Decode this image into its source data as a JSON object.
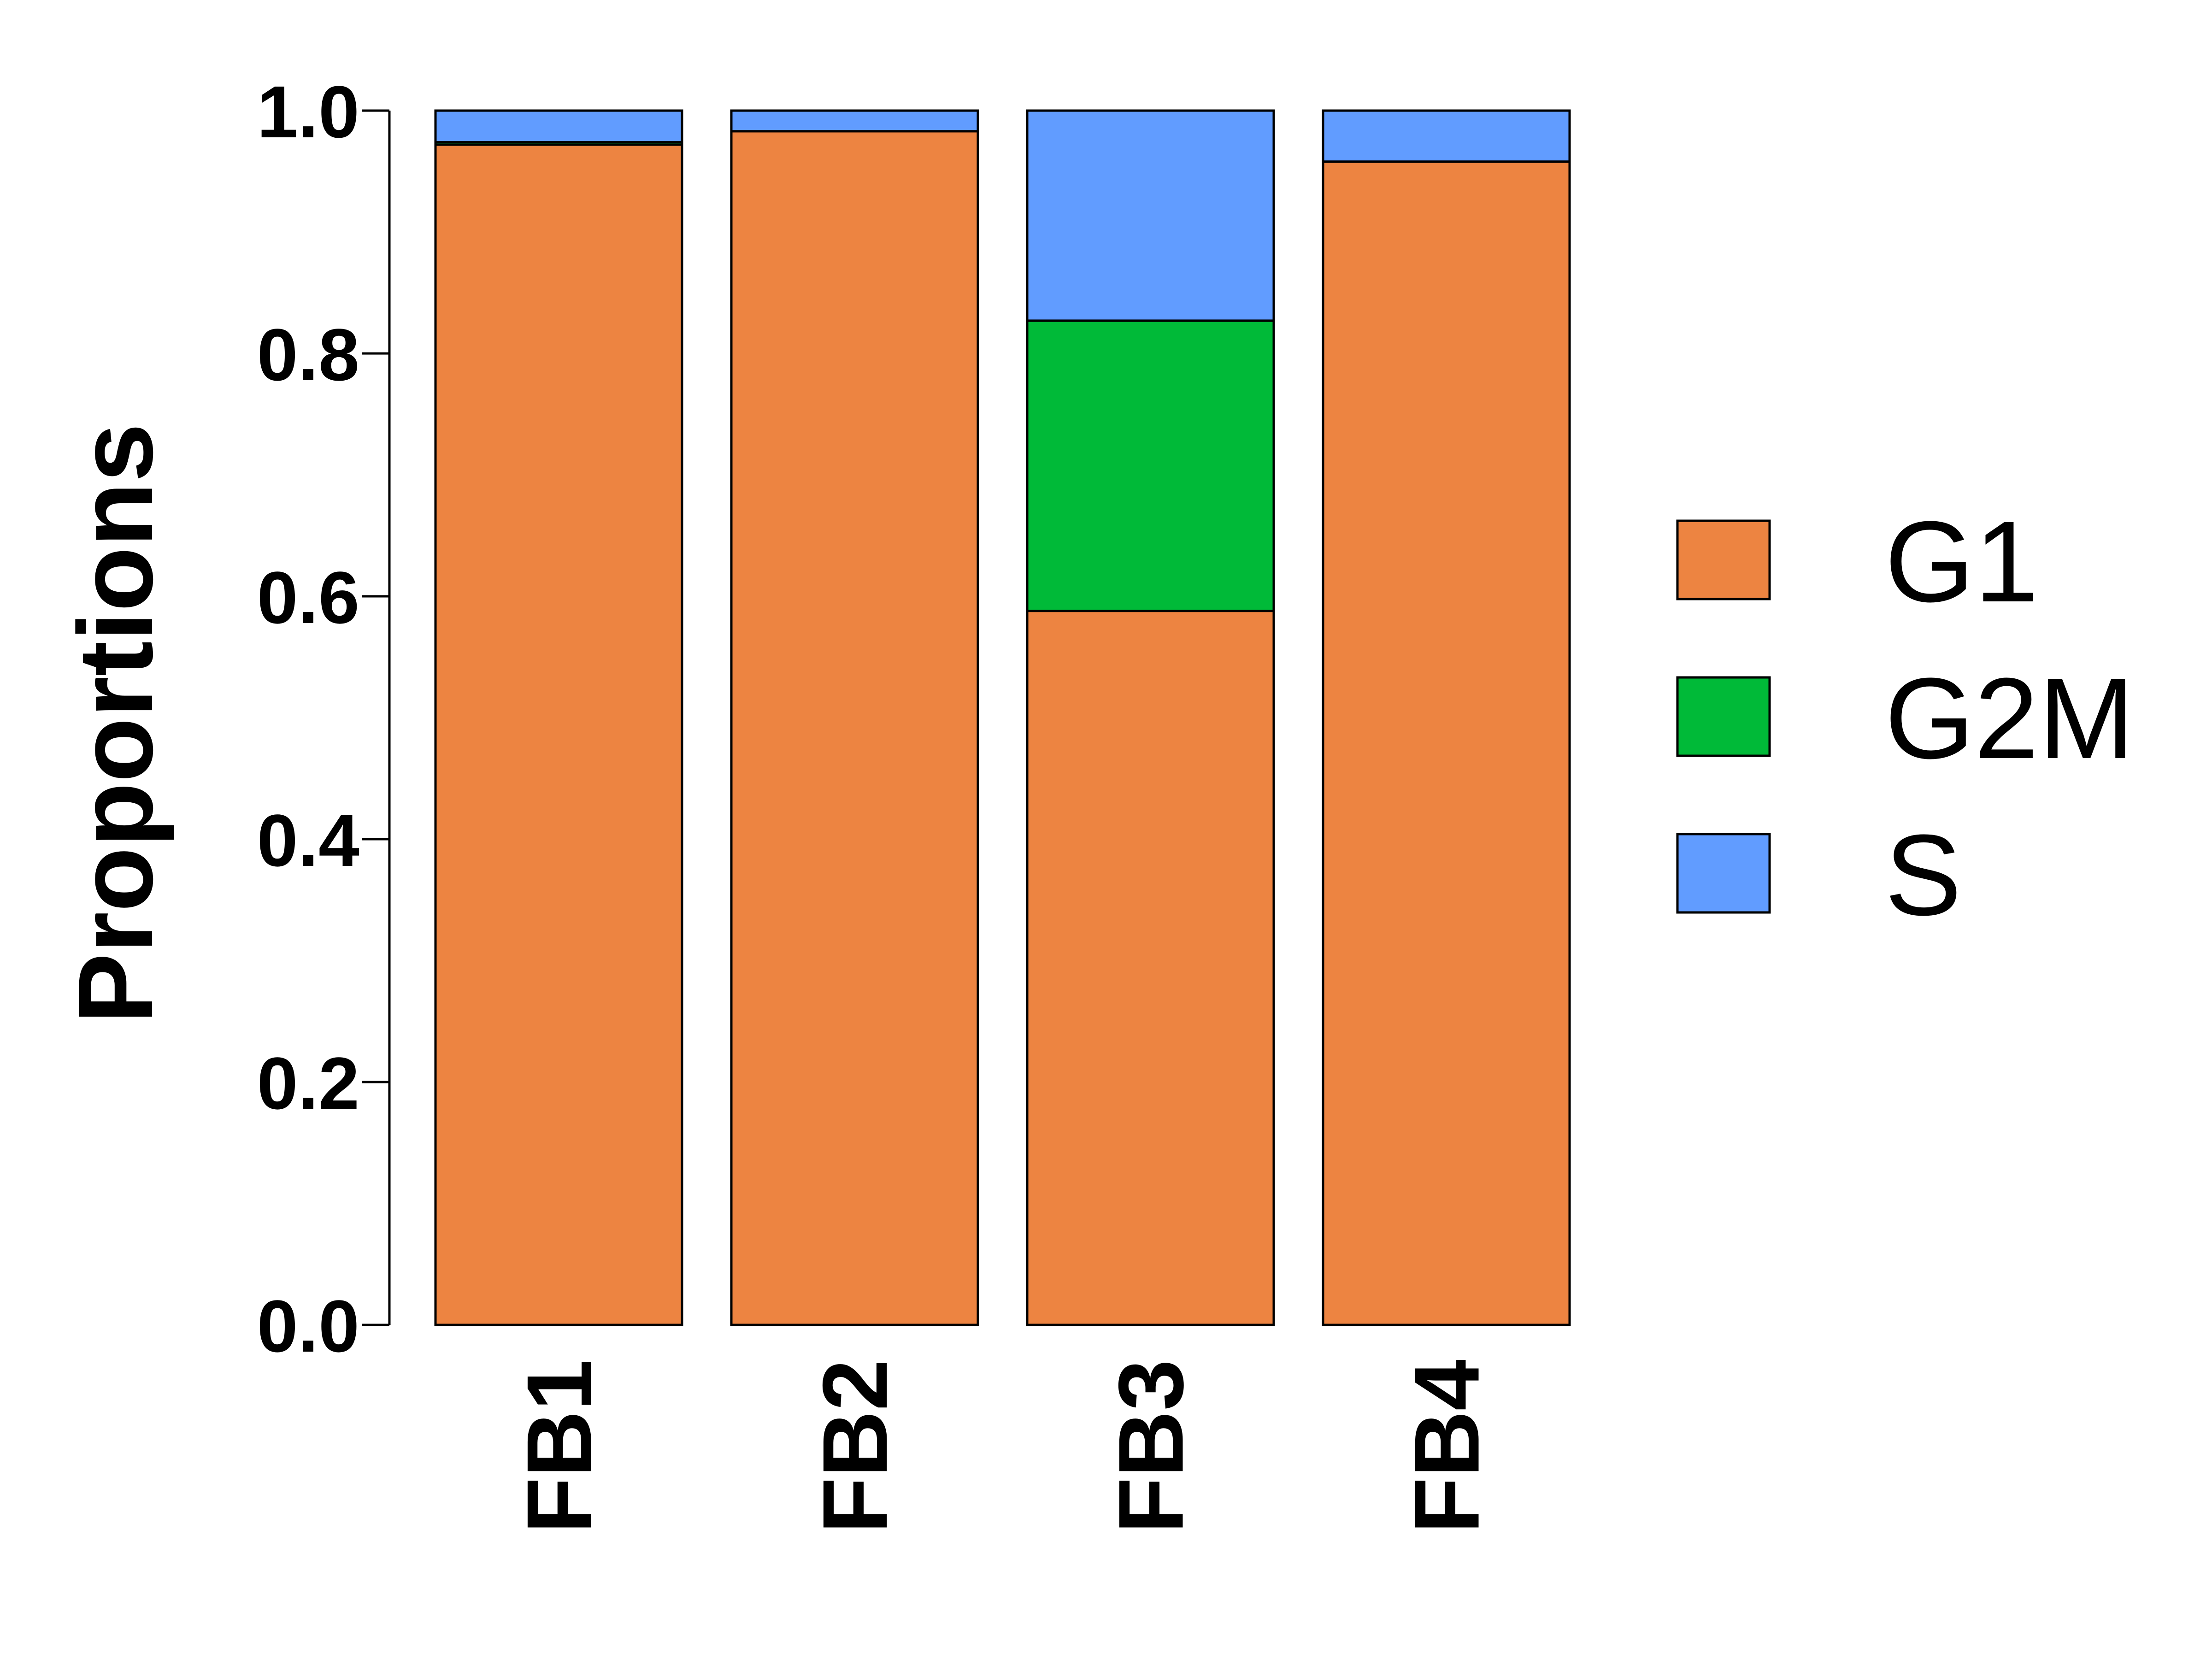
{
  "chart_data": {
    "type": "bar",
    "stacked": true,
    "ylabel": "Proportions",
    "xlabel": "",
    "ylim": [
      0,
      1
    ],
    "yticks": [
      "0.0",
      "0.2",
      "0.4",
      "0.6",
      "0.8",
      "1.0"
    ],
    "categories": [
      "FB1",
      "FB2",
      "FB3",
      "FB4"
    ],
    "series": [
      {
        "name": "G1",
        "color": "#ED8441",
        "values": [
          0.972,
          0.983,
          0.588,
          0.958
        ]
      },
      {
        "name": "G2M",
        "color": "#00BA38",
        "values": [
          0.002,
          0.0,
          0.239,
          0.0
        ]
      },
      {
        "name": "S",
        "color": "#619CFF",
        "values": [
          0.026,
          0.017,
          0.173,
          0.042
        ]
      }
    ],
    "legend_position": "right",
    "grid": false
  }
}
